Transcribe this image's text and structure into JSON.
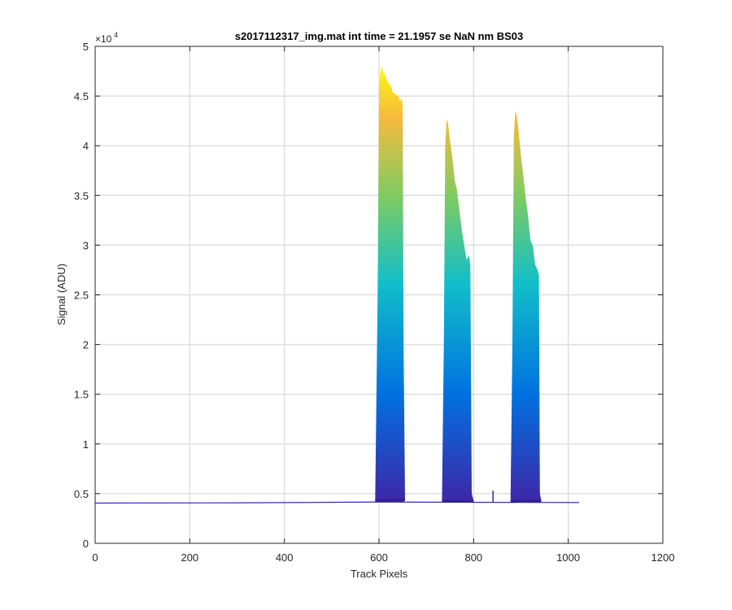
{
  "chart_data": {
    "type": "area",
    "title": "s2017112317_img.mat int time = 21.1957 se  NaN nm BS03",
    "xlabel": "Track Pixels",
    "ylabel": "Signal (ADU)",
    "xlim": [
      0,
      1200
    ],
    "ylim": [
      0,
      50000
    ],
    "y_exponent_label": "×10",
    "y_exponent_power": "4",
    "x_ticks": [
      0,
      200,
      400,
      600,
      800,
      1000,
      1200
    ],
    "x_tick_labels": [
      "0",
      "200",
      "400",
      "600",
      "800",
      "1000",
      "1200"
    ],
    "y_ticks": [
      0,
      5000,
      10000,
      15000,
      20000,
      25000,
      30000,
      35000,
      40000,
      45000,
      50000
    ],
    "y_tick_labels": [
      "0",
      "0.5",
      "1",
      "1.5",
      "2",
      "2.5",
      "3",
      "3.5",
      "4",
      "4.5",
      "5"
    ],
    "grid": true,
    "colormap": [
      "#3e26a8",
      "#0072e0",
      "#12bec9",
      "#7fcb62",
      "#f7ba3d",
      "#f9fb0e"
    ],
    "baseline": [
      [
        0,
        4050
      ],
      [
        300,
        4070
      ],
      [
        590,
        4150
      ],
      [
        1023,
        4100
      ]
    ],
    "series": [
      {
        "x": [
          592,
          597,
          600,
          603,
          606,
          609,
          612,
          615,
          620,
          625,
          630,
          635,
          640,
          645,
          648,
          650,
          652,
          655
        ],
        "top": [
          4300,
          25000,
          45500,
          47500,
          48000,
          47200,
          47300,
          46700,
          46300,
          46000,
          45300,
          45200,
          45000,
          44500,
          44800,
          44000,
          20000,
          4400
        ],
        "bottom": [
          4150,
          4150,
          4150,
          4200,
          4200,
          4200,
          4200,
          4200,
          4200,
          4200,
          4200,
          4200,
          4200,
          4200,
          4200,
          4200,
          4200,
          4300
        ]
      },
      {
        "x": [
          733,
          737,
          740,
          743,
          746,
          750,
          755,
          760,
          765,
          770,
          775,
          780,
          785,
          790,
          793,
          796,
          800
        ],
        "top": [
          4200,
          20000,
          40000,
          42700,
          42200,
          40500,
          38800,
          36500,
          35500,
          33500,
          31500,
          30000,
          28500,
          29000,
          28000,
          5000,
          4300
        ],
        "bottom": [
          4100,
          4100,
          4100,
          4100,
          4100,
          4100,
          4100,
          4100,
          4100,
          4100,
          4100,
          4100,
          4100,
          4100,
          4100,
          4100,
          4100
        ]
      },
      {
        "x": [
          878,
          882,
          885,
          888,
          891,
          895,
          900,
          905,
          910,
          915,
          920,
          925,
          930,
          935,
          938,
          940,
          943
        ],
        "top": [
          4200,
          20000,
          41000,
          43600,
          43000,
          41500,
          39000,
          37000,
          34800,
          33000,
          30500,
          30000,
          28000,
          27500,
          27000,
          5000,
          4300
        ],
        "bottom": [
          4100,
          4100,
          4100,
          4100,
          4100,
          4100,
          4100,
          4100,
          4100,
          4100,
          4100,
          4100,
          4100,
          4100,
          4100,
          4100,
          4100
        ]
      }
    ],
    "spike": {
      "x": 841,
      "y": 5300
    }
  }
}
